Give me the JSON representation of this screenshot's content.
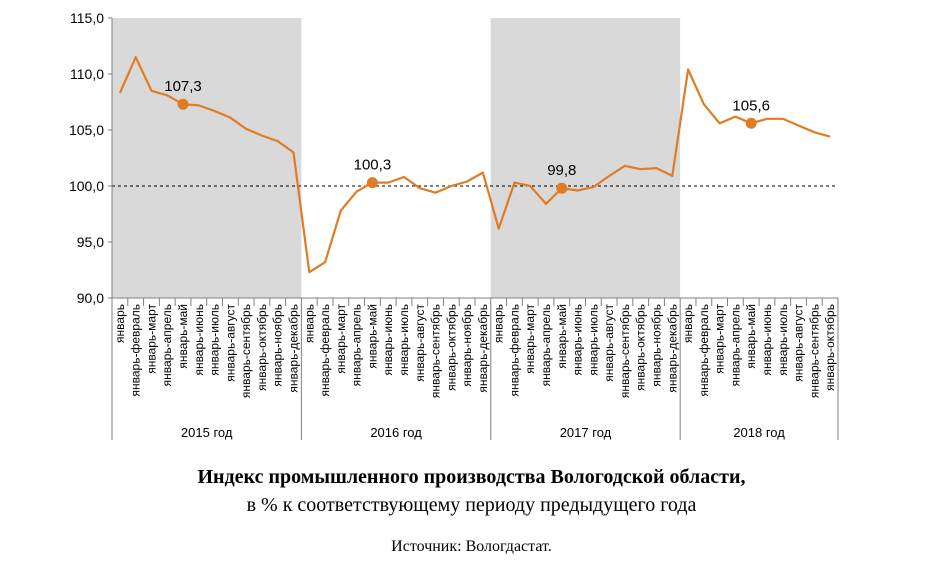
{
  "chart_data": {
    "type": "line",
    "title": "Индекс промышленного производства Вологодской области,",
    "subtitle": "в % к соответствующему периоду предыдущего года",
    "source": "Источник: Вологдастат.",
    "ylim": [
      90,
      115
    ],
    "yticks": [
      "90,0",
      "95,0",
      "100,0",
      "105,0",
      "110,0",
      "115,0"
    ],
    "reference_line": 100,
    "categories": [
      "январь",
      "январь-февраль",
      "январь-март",
      "январь-апрель",
      "январь-май",
      "январь-июнь",
      "январь-июль",
      "январь-август",
      "январь-сентябрь",
      "январь-октябрь",
      "январь-ноябрь",
      "январь-декабрь",
      "январь",
      "январь-февраль",
      "январь-март",
      "январь-апрель",
      "январь-май",
      "январь-июнь",
      "январь-июль",
      "январь-август",
      "январь-сентябрь",
      "январь-октябрь",
      "январь-ноябрь",
      "январь-декабрь",
      "январь",
      "январь-февраль",
      "январь-март",
      "январь-апрель",
      "январь-май",
      "январь-июнь",
      "январь-июль",
      "январь-август",
      "январь-сентябрь",
      "январь-октябрь",
      "январь-ноябрь",
      "январь-декабрь",
      "январь",
      "январь-февраль",
      "январь-март",
      "январь-апрель",
      "январь-май",
      "январь-июнь",
      "январь-июль",
      "январь-август",
      "январь-сентябрь",
      "январь-октябрь"
    ],
    "groups": [
      {
        "label": "2015 год",
        "count": 12,
        "shaded": true
      },
      {
        "label": "2016 год",
        "count": 12,
        "shaded": false
      },
      {
        "label": "2017 год",
        "count": 12,
        "shaded": true
      },
      {
        "label": "2018 год",
        "count": 10,
        "shaded": false
      }
    ],
    "values": [
      108.3,
      111.5,
      108.5,
      108.1,
      107.3,
      107.2,
      106.7,
      106.1,
      105.1,
      104.5,
      104.0,
      103.0,
      92.3,
      93.2,
      97.8,
      99.5,
      100.3,
      100.3,
      100.8,
      99.8,
      99.4,
      100.0,
      100.4,
      101.2,
      96.2,
      100.3,
      100.0,
      98.4,
      99.8,
      99.6,
      99.9,
      100.9,
      101.8,
      101.5,
      101.6,
      100.9,
      110.4,
      107.3,
      105.6,
      106.2,
      105.6,
      106.0,
      106.0,
      105.4,
      104.8,
      104.4
    ],
    "highlights": [
      {
        "index": 4,
        "label": "107,3"
      },
      {
        "index": 16,
        "label": "100,3"
      },
      {
        "index": 28,
        "label": "99,8"
      },
      {
        "index": 40,
        "label": "105,6"
      }
    ],
    "colors": {
      "line": "#E07C24",
      "shade": "#D9D9D9",
      "axis": "#808080"
    }
  }
}
